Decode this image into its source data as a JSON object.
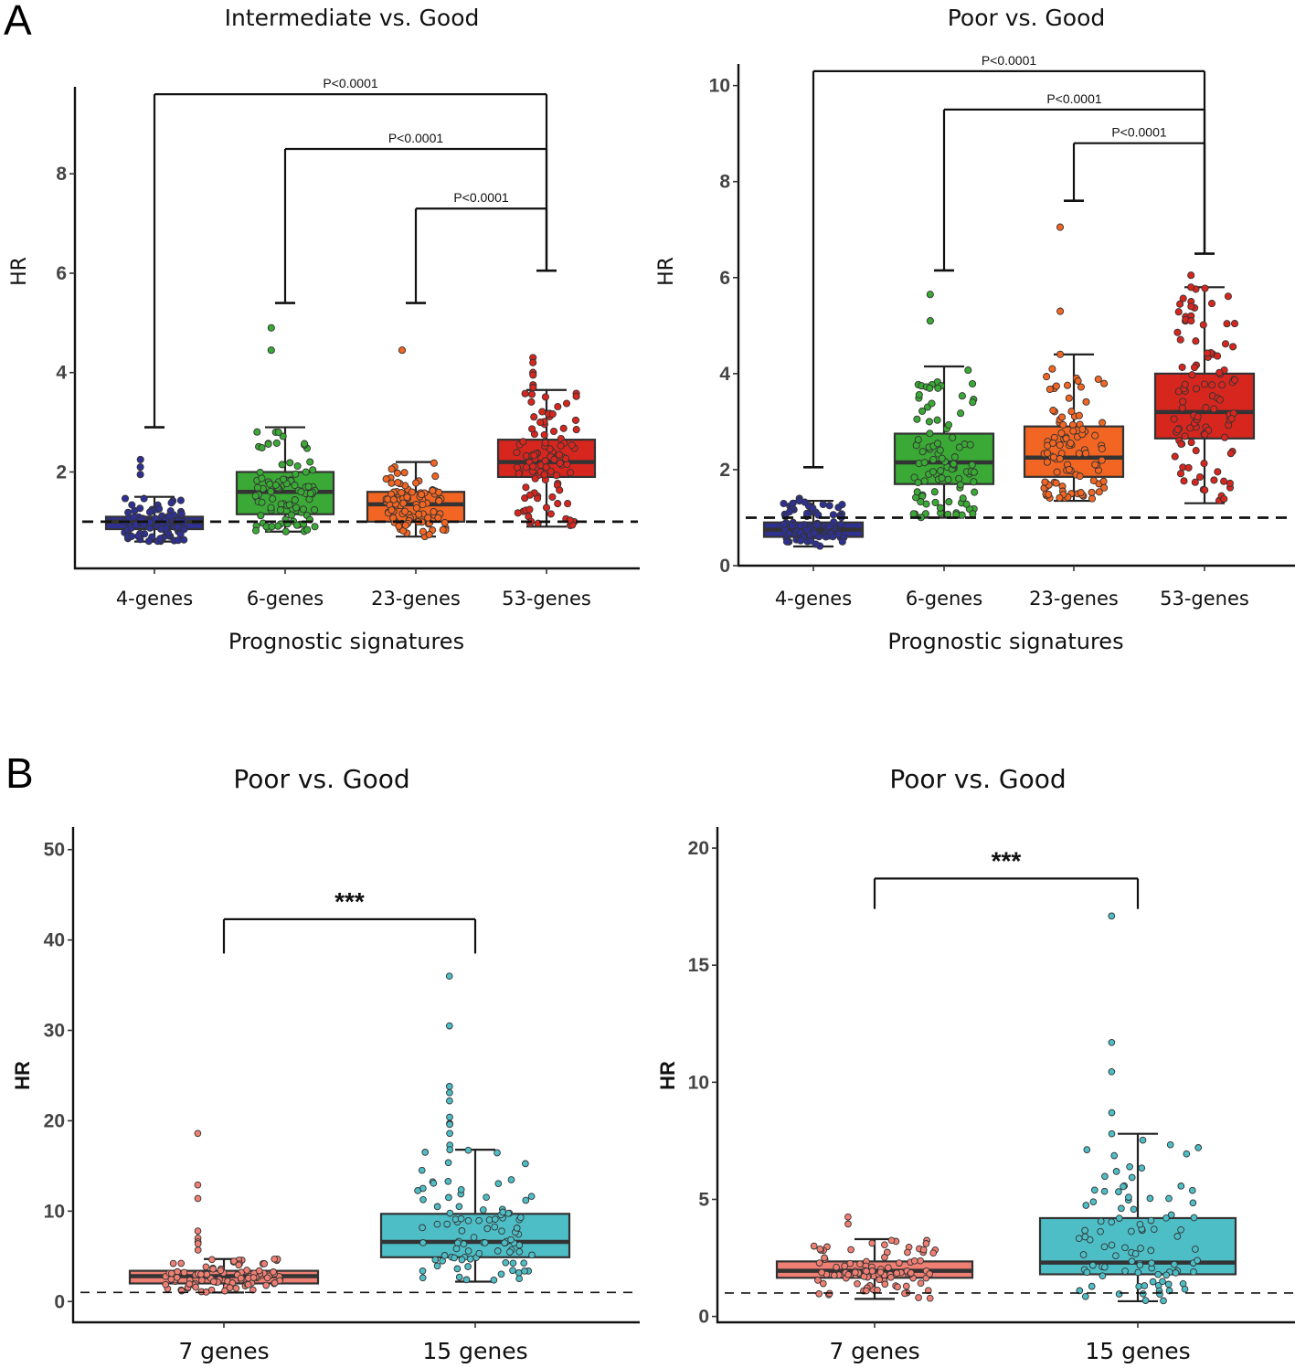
{
  "panels": {
    "A": "A",
    "B": "B"
  },
  "chart_data": [
    {
      "type": "box",
      "panel": "A",
      "title": "Intermediate vs. Good",
      "xlabel": "Prognostic signatures",
      "ylabel": "HR",
      "yticks": [
        2,
        4,
        6,
        8
      ],
      "ytick_labels": [
        "2",
        "4",
        "6",
        "8"
      ],
      "ylim": [
        0.06,
        9.75
      ],
      "reference_line": 1,
      "categories": [
        "4-genes",
        "6-genes",
        "23-genes",
        "53-genes"
      ],
      "colors": [
        "#2e3192",
        "#3aa935",
        "#f26522",
        "#d7261e"
      ],
      "boxes": [
        {
          "name": "4-genes",
          "whisker_low": 0.6,
          "q1": 0.85,
          "median": 1.0,
          "q3": 1.1,
          "whisker_high": 1.5,
          "outliers": [
            2.1,
            1.95,
            2.25
          ]
        },
        {
          "name": "6-genes",
          "whisker_low": 0.8,
          "q1": 1.15,
          "median": 1.6,
          "q3": 2.0,
          "whisker_high": 2.9,
          "outliers": [
            4.9,
            4.45
          ]
        },
        {
          "name": "23-genes",
          "whisker_low": 0.7,
          "q1": 1.0,
          "median": 1.35,
          "q3": 1.6,
          "whisker_high": 2.2,
          "outliers": [
            4.45
          ]
        },
        {
          "name": "53-genes",
          "whisker_low": 0.9,
          "q1": 1.9,
          "median": 2.2,
          "q3": 2.65,
          "whisker_high": 3.65,
          "outliers": [
            4.3,
            4.2,
            4.0,
            4.0,
            3.95,
            3.75,
            3.75,
            3.7
          ]
        }
      ],
      "comparisons": [
        {
          "groups": [
            "4-genes",
            "53-genes"
          ],
          "label": "P<0.0001",
          "y": 9.6,
          "left_end": 2.9,
          "right_end": 6.05
        },
        {
          "groups": [
            "6-genes",
            "53-genes"
          ],
          "label": "P<0.0001",
          "y": 8.5,
          "left_end": 5.4,
          "right_end": 6.05
        },
        {
          "groups": [
            "23-genes",
            "53-genes"
          ],
          "label": "P<0.0001",
          "y": 7.3,
          "left_end": 5.4,
          "right_end": 6.05
        }
      ]
    },
    {
      "type": "box",
      "panel": "A",
      "title": "Poor vs. Good",
      "xlabel": "Prognostic signatures",
      "ylabel": "HR",
      "yticks": [
        0,
        2,
        4,
        6,
        8,
        10
      ],
      "ytick_labels": [
        "0",
        "2",
        "4",
        "6",
        "8",
        "10"
      ],
      "ylim": [
        0,
        10.45
      ],
      "reference_line": 1,
      "categories": [
        "4-genes",
        "6-genes",
        "23-genes",
        "53-genes"
      ],
      "colors": [
        "#2e3192",
        "#3aa935",
        "#f26522",
        "#d7261e"
      ],
      "boxes": [
        {
          "name": "4-genes",
          "whisker_low": 0.4,
          "q1": 0.6,
          "median": 0.75,
          "q3": 0.9,
          "whisker_high": 1.35,
          "outliers": [
            1.4,
            1.35
          ]
        },
        {
          "name": "6-genes",
          "whisker_low": 1.0,
          "q1": 1.7,
          "median": 2.15,
          "q3": 2.75,
          "whisker_high": 4.15,
          "outliers": [
            5.65,
            5.1
          ]
        },
        {
          "name": "23-genes",
          "whisker_low": 1.35,
          "q1": 1.85,
          "median": 2.25,
          "q3": 2.9,
          "whisker_high": 4.4,
          "outliers": [
            7.05,
            5.3,
            4.4
          ]
        },
        {
          "name": "53-genes",
          "whisker_low": 1.3,
          "q1": 2.65,
          "median": 3.2,
          "q3": 4.0,
          "whisker_high": 5.8,
          "outliers": [
            6.05,
            5.8,
            5.5,
            5.4,
            5.2,
            5.1
          ]
        }
      ],
      "comparisons": [
        {
          "groups": [
            "4-genes",
            "53-genes"
          ],
          "label": "P<0.0001",
          "y": 10.3,
          "left_end": 2.05,
          "right_end": 6.5
        },
        {
          "groups": [
            "6-genes",
            "53-genes"
          ],
          "label": "P<0.0001",
          "y": 9.5,
          "left_end": 6.15,
          "right_end": 6.5
        },
        {
          "groups": [
            "23-genes",
            "53-genes"
          ],
          "label": "P<0.0001",
          "y": 8.8,
          "left_end": 7.6,
          "right_end": 6.5
        }
      ]
    },
    {
      "type": "box",
      "panel": "B",
      "title": "Poor vs. Good",
      "xlabel": "",
      "ylabel": "HR",
      "yticks": [
        0,
        10,
        20,
        30,
        40,
        50
      ],
      "ytick_labels": [
        "0",
        "10",
        "20",
        "30",
        "40",
        "50"
      ],
      "ylim": [
        -2.3,
        52.5
      ],
      "reference_line": 1,
      "categories": [
        "7 genes",
        "15 genes"
      ],
      "colors": [
        "#f07f73",
        "#4dbec6"
      ],
      "boxes": [
        {
          "name": "7 genes",
          "whisker_low": 1.0,
          "q1": 2.0,
          "median": 2.8,
          "q3": 3.4,
          "whisker_high": 4.7,
          "outliers": [
            18.6,
            12.9,
            11.4,
            7.8,
            7.0,
            6.6,
            6.4,
            5.7
          ]
        },
        {
          "name": "15 genes",
          "whisker_low": 2.2,
          "q1": 4.9,
          "median": 6.6,
          "q3": 9.7,
          "whisker_high": 16.8,
          "outliers": [
            36.0,
            30.5,
            23.8,
            23.1,
            22.2,
            20.4,
            19.7,
            19.6,
            18.6,
            17.3,
            16.8
          ]
        }
      ],
      "comparisons": [
        {
          "groups": [
            "7 genes",
            "15 genes"
          ],
          "label": "***",
          "y": 42.3,
          "left_end": 38.5,
          "right_end": 38.5
        }
      ]
    },
    {
      "type": "box",
      "panel": "B",
      "title": "Poor vs. Good",
      "xlabel": "",
      "ylabel": "HR",
      "yticks": [
        0,
        5,
        10,
        15,
        20
      ],
      "ytick_labels": [
        "0",
        "5",
        "10",
        "15",
        "20"
      ],
      "ylim": [
        -0.25,
        20.9
      ],
      "reference_line": 1,
      "categories": [
        "7 genes",
        "15 genes"
      ],
      "colors": [
        "#f07f73",
        "#4dbec6"
      ],
      "boxes": [
        {
          "name": "7 genes",
          "whisker_low": 0.75,
          "q1": 1.65,
          "median": 1.95,
          "q3": 2.35,
          "whisker_high": 3.3,
          "outliers": [
            4.25,
            3.95
          ]
        },
        {
          "name": "15 genes",
          "whisker_low": 0.65,
          "q1": 1.8,
          "median": 2.3,
          "q3": 4.2,
          "whisker_high": 7.8,
          "outliers": [
            17.1,
            11.7,
            10.45,
            8.7,
            7.8
          ]
        }
      ],
      "comparisons": [
        {
          "groups": [
            "7 genes",
            "15 genes"
          ],
          "label": "***",
          "y": 18.7,
          "left_end": 17.4,
          "right_end": 17.4
        }
      ]
    }
  ]
}
